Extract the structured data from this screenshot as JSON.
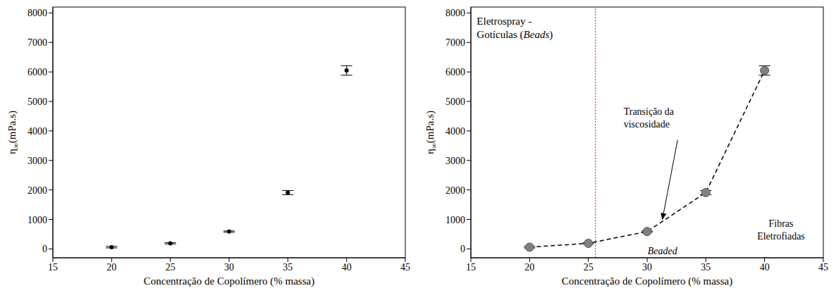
{
  "chart_data": [
    {
      "type": "scatter",
      "x": [
        20,
        25,
        30,
        35,
        40
      ],
      "values": [
        60,
        190,
        590,
        1910,
        6050
      ],
      "errors": [
        25,
        20,
        20,
        70,
        160
      ],
      "color": "#000000",
      "marker": "circle",
      "xlabel": "Concentração de Copolímero (% massa)",
      "ylabel": "η∞(mPa.s)",
      "xlim": [
        15,
        45
      ],
      "xticks": [
        15,
        20,
        25,
        30,
        35,
        40,
        45
      ],
      "ylim": [
        -300,
        8200
      ],
      "yticks": [
        0,
        1000,
        2000,
        3000,
        4000,
        5000,
        6000,
        7000,
        8000
      ],
      "grid": false
    },
    {
      "type": "scatter",
      "x": [
        20,
        25,
        30,
        35,
        40
      ],
      "values": [
        60,
        190,
        590,
        1910,
        6050
      ],
      "errors": [
        25,
        20,
        20,
        70,
        160
      ],
      "color": "#808080",
      "marker": "circle",
      "line_style": "dashed",
      "xlabel": "Concentração de Copolímero (% massa)",
      "ylabel": "η∞(mPa.s)",
      "xlim": [
        15,
        45
      ],
      "xticks": [
        15,
        20,
        25,
        30,
        35,
        40,
        45
      ],
      "ylim": [
        -300,
        8200
      ],
      "yticks": [
        0,
        1000,
        2000,
        3000,
        4000,
        5000,
        6000,
        7000,
        8000
      ],
      "grid": false,
      "reference_lines": [
        {
          "x": 25.6,
          "color": "#e0392f",
          "line_style": "dotted"
        }
      ],
      "annotations": [
        {
          "text": "Eletrospray - Gotículas (Beads)"
        },
        {
          "text": "Transição da viscosidade"
        },
        {
          "text": "Beaded"
        },
        {
          "text": "Fibras Eletrofiadas"
        }
      ]
    }
  ]
}
